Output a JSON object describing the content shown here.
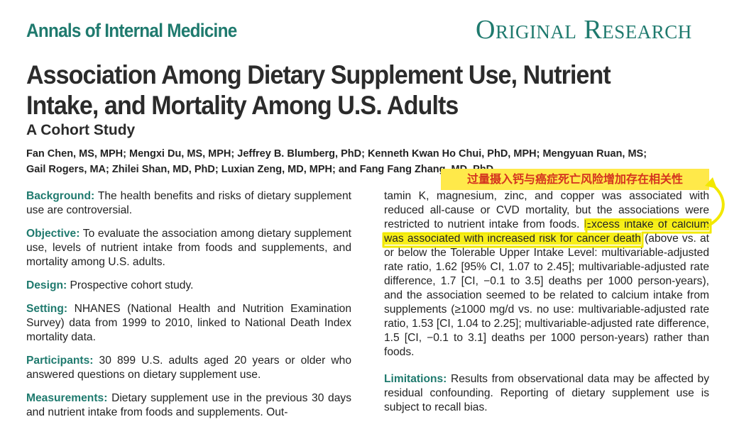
{
  "journal": "Annals of Internal Medicine",
  "section_label": "Original Research",
  "title": "Association Among Dietary Supplement Use, Nutrient Intake, and Mortality Among U.S. Adults",
  "subtitle": "A Cohort Study",
  "authors_line1": "Fan Chen, MS, MPH; Mengxi Du, MS, MPH; Jeffrey B. Blumberg, PhD; Kenneth Kwan Ho Chui, PhD, MPH; Mengyuan Ruan, MS;",
  "authors_line2": "Gail Rogers, MA; Zhilei Shan, MD, PhD; Luxian Zeng, MD, MPH; and Fang Fang Zhang, MD, PhD",
  "annotation": "过量摄入钙与癌症死亡风险增加存在相关性",
  "colors": {
    "accent": "#1f7a6e",
    "highlight": "#f7ef1a",
    "annotation_bg": "#ffe94a",
    "annotation_text": "#d4331f"
  },
  "abstract_left": [
    {
      "heading": "Background:",
      "text": " The health benefits and risks of dietary supplement use are controversial."
    },
    {
      "heading": "Objective:",
      "text": " To evaluate the association among dietary supplement use, levels of nutrient intake from foods and supplements, and mortality among U.S. adults."
    },
    {
      "heading": "Design:",
      "text": " Prospective cohort study."
    },
    {
      "heading": "Setting:",
      "text": " NHANES (National Health and Nutrition Examination Survey) data from 1999 to 2010, linked to National Death Index mortality data."
    },
    {
      "heading": "Participants:",
      "text": " 30 899 U.S. adults aged 20 years or older who answered questions on dietary supplement use."
    },
    {
      "heading": "Measurements:",
      "text": " Dietary supplement use in the previous 30 days and nutrient intake from foods and supplements. Out-"
    }
  ],
  "results_pre": "tamin K, magnesium, zinc, and copper was associated with reduced all-cause or CVD mortality, but the associations were restricted to nutrient intake from foods. ",
  "results_highlight": "Excess intake of calcium was associated with increased risk for cancer death",
  "results_post": " (above vs. at or below the Tolerable Upper Intake Level: multivariable-adjusted rate ratio, 1.62 [95% CI, 1.07 to 2.45]; multivariable-adjusted rate difference, 1.7 [CI, −0.1 to 3.5] deaths per 1000 person-years), and the association seemed to be related to calcium intake from supplements (≥1000 mg/d vs. no use: multivariable-adjusted rate ratio, 1.53 [CI, 1.04 to 2.25]; multivariable-adjusted rate difference, 1.5 [CI, −0.1 to 3.1] deaths per 1000 person-years) rather than foods.",
  "limitations": {
    "heading": "Limitations:",
    "text": " Results from observational data may be affected by residual confounding. Reporting of dietary supplement use is subject to recall bias."
  }
}
